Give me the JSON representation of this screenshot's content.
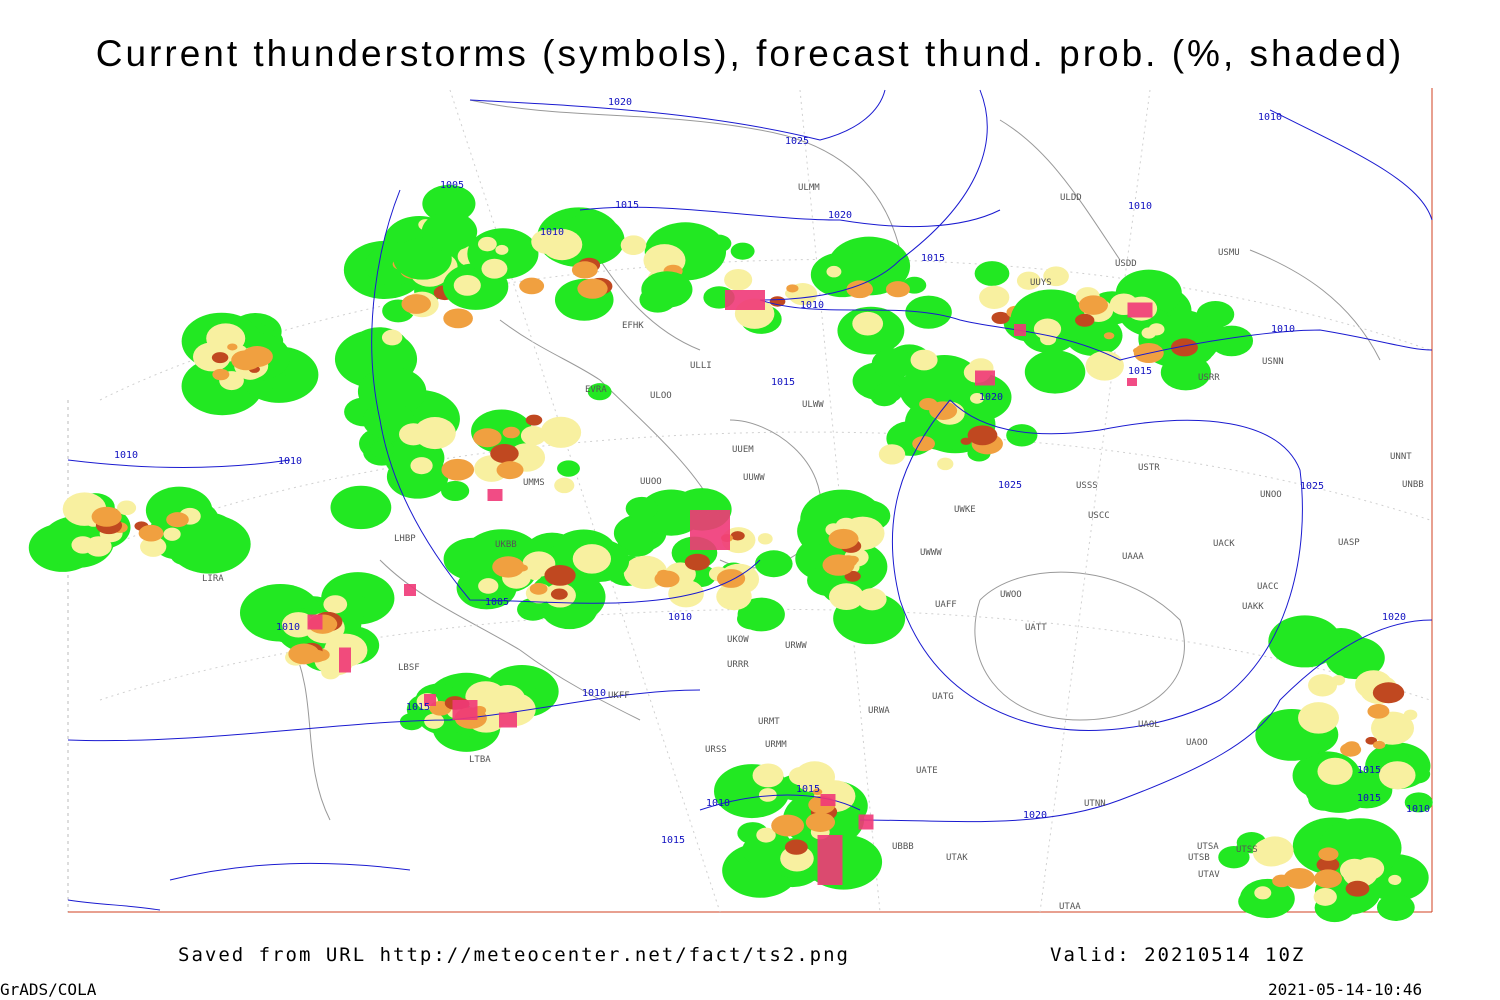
{
  "title": "Current thunderstorms (symbols), forecast thund. prob. (%, shaded)",
  "footer": {
    "source": "Saved from URL  http://meteocenter.net/fact/ts2.png",
    "valid": "Valid: 20210514 10Z",
    "software": "GrADS/COLA",
    "timestamp": "2021-05-14-10:46"
  },
  "isobar_labels": [
    "1020",
    "1025",
    "1005",
    "1015",
    "1010",
    "1020",
    "1015",
    "1010",
    "1010",
    "1010",
    "1015",
    "1020",
    "1010",
    "1010",
    "1005",
    "1010",
    "1010",
    "1010",
    "1015",
    "1025",
    "1015",
    "1025",
    "1020",
    "1020",
    "1015",
    "1015",
    "1010",
    "1010",
    "1015",
    "1010",
    "1015"
  ],
  "station_labels": [
    "ULMM",
    "ULDD",
    "USDD",
    "UUYS",
    "USMU",
    "USRR",
    "USNN",
    "EFHK",
    "ULLI",
    "ULOO",
    "ULWW",
    "UUEM",
    "UUWW",
    "UUOO",
    "EVRA",
    "UMMS",
    "UKBB",
    "LHBP",
    "LIRA",
    "LBSF",
    "LTBA",
    "UKFF",
    "URSS",
    "URMM",
    "URMT",
    "URRR",
    "UKOW",
    "URWA",
    "URWW",
    "UWWW",
    "UWKE",
    "USSS",
    "USTR",
    "UNOO",
    "USCC",
    "UACK",
    "UAAA",
    "UACC",
    "UAKK",
    "UASP",
    "UNNT",
    "UNBB",
    "UAOO",
    "UAOL",
    "UATG",
    "UTSA",
    "UTSS",
    "UTSB",
    "UTAV",
    "UTAA",
    "UTAK",
    "UBBB",
    "UTNN",
    "UATT",
    "UWOO",
    "UAFF",
    "UATE"
  ]
}
